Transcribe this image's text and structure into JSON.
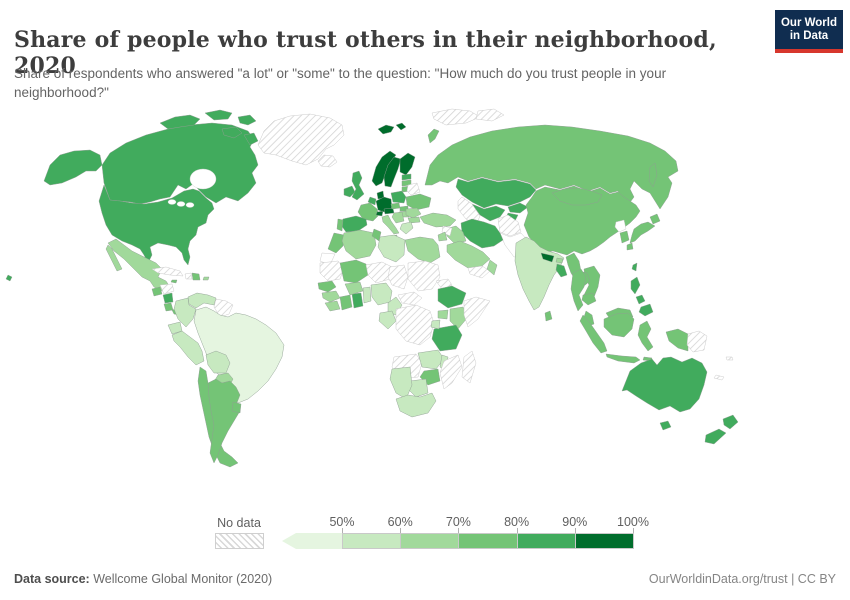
{
  "header": {
    "title": "Share of people who trust others in their neighborhood, 2020",
    "subtitle": "Share of respondents who answered \"a lot\" or \"some\" to the question: \"How much do you trust people in your neighborhood?\""
  },
  "logo": {
    "line1": "Our World",
    "line2": "in Data",
    "bg_color": "#102d50",
    "accent_color": "#d7372d"
  },
  "legend": {
    "no_data_label": "No data",
    "tick_labels": [
      "50%",
      "60%",
      "70%",
      "80%",
      "90%",
      "100%"
    ]
  },
  "footer": {
    "source_label": "Data source:",
    "source_value": " Wellcome Global Monitor (2020)",
    "right_text": "OurWorldinData.org/trust | CC BY"
  },
  "chart_data": {
    "type": "choropleth",
    "title": "Share of people who trust others in their neighborhood, 2020",
    "unit": "%",
    "legend_bins": {
      "thresholds": [
        50,
        60,
        70,
        80,
        90
      ],
      "colors": [
        "#e5f5e0",
        "#c7e9c0",
        "#a1d99b",
        "#74c476",
        "#41ab5d",
        "#006d2c"
      ],
      "range_labels": [
        "<50%",
        "50-60%",
        "60-70%",
        "70-80%",
        "80-90%",
        "90-100%"
      ]
    },
    "no_data": {
      "label": "No data",
      "style": "hatched"
    },
    "countries": {
      "United States": 84,
      "Canada": 84,
      "Mexico": 65,
      "Guatemala": 72,
      "Honduras": null,
      "Nicaragua": 82,
      "Costa Rica": 75,
      "Panama": 70,
      "Cuba": null,
      "Haiti": null,
      "Dominican Republic": 75,
      "Jamaica": 72,
      "Puerto Rico": 62,
      "Venezuela": 56,
      "Colombia": 56,
      "Guyana": null,
      "Ecuador": 57,
      "Peru": 55,
      "Brazil": 45,
      "Bolivia": 57,
      "Paraguay": 66,
      "Uruguay": 78,
      "Chile": 71,
      "Argentina": 71,
      "Greenland": null,
      "Iceland": null,
      "Ireland": 83,
      "United Kingdom": 84,
      "Portugal": 78,
      "Spain": 83,
      "France": 76,
      "Netherlands": 84,
      "Germany": 92,
      "Denmark": 93,
      "Norway": 95,
      "Sweden": 93,
      "Finland": 94,
      "Switzerland": 91,
      "Austria": 90,
      "Italy": 66,
      "Czechia": 76,
      "Slovakia": 72,
      "Hungary": 68,
      "Poland": 81,
      "Estonia": 81,
      "Latvia": 74,
      "Lithuania": 74,
      "Belarus": null,
      "Ukraine": 74,
      "Romania": 66,
      "Bulgaria": 62,
      "Serbia": 60,
      "Greece": 57,
      "Russia": 74,
      "Franz Josef Land": null,
      "Kazakhstan": 84,
      "Uzbekistan": 86,
      "Turkmenistan": null,
      "Kyrgyzstan": 84,
      "Tajikistan": 84,
      "Afghanistan": null,
      "Pakistan": null,
      "Iran": 84,
      "Iraq": 62,
      "Turkey": 64,
      "Syria": null,
      "Jordan": 66,
      "Saudi Arabia": 66,
      "Yemen": null,
      "Oman": 62,
      "Egypt": 62,
      "Libya": 56,
      "Tunisia": 70,
      "Algeria": 61,
      "Morocco": 70,
      "Western Sahara": null,
      "Mauritania": null,
      "Mali": 70,
      "Niger": null,
      "Chad": null,
      "Sudan": null,
      "Eritrea": null,
      "Senegal": 76,
      "Guinea": 64,
      "Liberia": 60,
      "Ivory Coast": 74,
      "Ghana": 81,
      "Burkina Faso": 66,
      "Benin": 56,
      "Nigeria": 52,
      "Cameroon": 56,
      "Central African Republic": null,
      "Congo": 52,
      "Democratic Republic of Congo": null,
      "Uganda": 64,
      "Kenya": 65,
      "Somalia": null,
      "Ethiopia": 84,
      "Tanzania": 84,
      "Rwanda": 56,
      "Angola": null,
      "Zambia": 55,
      "Malawi": 57,
      "Mozambique": null,
      "Zimbabwe": 74,
      "Botswana": 55,
      "Namibia": 59,
      "South Africa": 55,
      "Madagascar": null,
      "India": 58,
      "Nepal": 92,
      "Bhutan": 60,
      "Bangladesh": 84,
      "Sri Lanka": 72,
      "Myanmar": 76,
      "Thailand": 75,
      "Vietnam": 76,
      "Laos": 74,
      "Cambodia": 76,
      "Malaysia": 76,
      "Indonesia": 76,
      "Papua New Guinea": null,
      "Philippines": 80,
      "Taiwan": 84,
      "South Korea": 74,
      "North Korea": null,
      "Japan": 71,
      "China": 76,
      "Mongolia": 76,
      "Australia": 84,
      "New Zealand": 86,
      "Fiji": null,
      "New Caledonia": null
    }
  }
}
